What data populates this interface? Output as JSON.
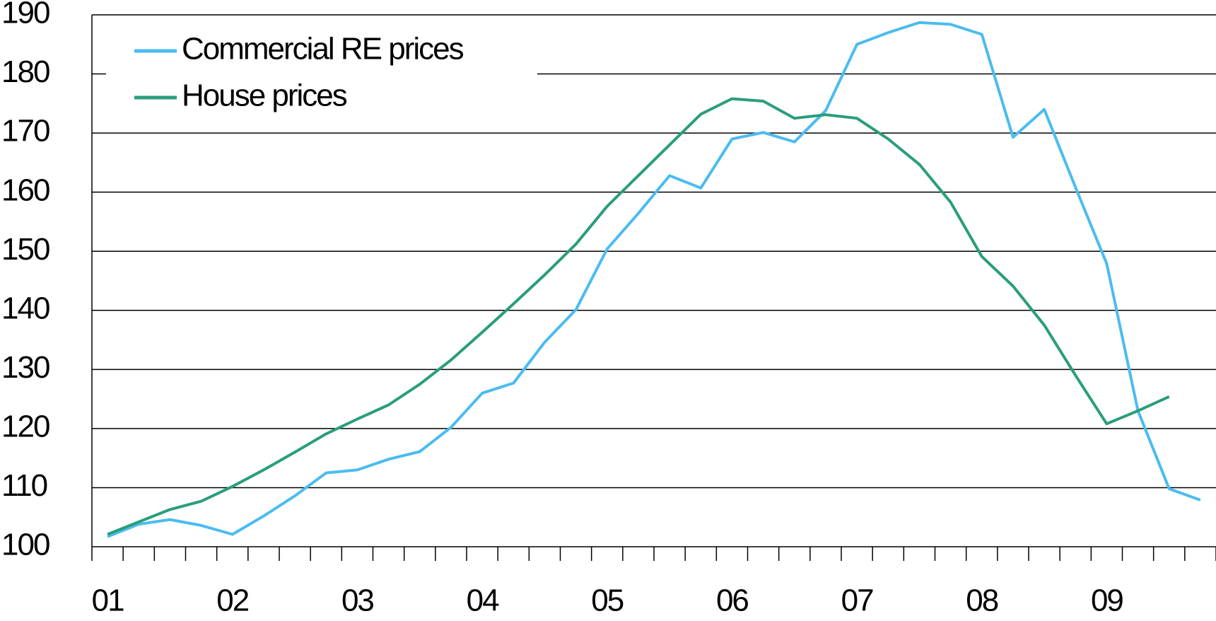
{
  "chart_data": {
    "type": "line",
    "categories": [
      "01",
      null,
      null,
      null,
      "02",
      null,
      null,
      null,
      "03",
      null,
      null,
      null,
      "04",
      null,
      null,
      null,
      "05",
      null,
      null,
      null,
      "06",
      null,
      null,
      null,
      "07",
      null,
      null,
      null,
      "08",
      null,
      null,
      null,
      "09",
      null,
      null,
      null
    ],
    "series": [
      {
        "name": "Commercial RE prices",
        "color": "#4bbcf0",
        "values": [
          101.7,
          103.8,
          104.6,
          103.6,
          102.1,
          105.2,
          108.6,
          112.5,
          113.0,
          114.8,
          116.1,
          120.2,
          126.0,
          127.7,
          134.6,
          140.1,
          150.4,
          156.4,
          162.8,
          160.7,
          169.0,
          170.1,
          168.5,
          173.8,
          185.0,
          187.0,
          188.7,
          188.4,
          186.7,
          169.3,
          174.0,
          160.8,
          147.9,
          123.0,
          109.8,
          107.9
        ]
      },
      {
        "name": "House prices",
        "color": "#2a9d7c",
        "values": [
          102.1,
          104.2,
          106.3,
          107.7,
          110.2,
          113.0,
          116.0,
          119.1,
          121.6,
          124.0,
          127.5,
          131.6,
          136.3,
          141.1,
          146.0,
          151.2,
          157.6,
          162.8,
          168.0,
          173.2,
          175.8,
          175.4,
          172.5,
          173.1,
          172.5,
          169.0,
          164.7,
          158.3,
          149.1,
          144.1,
          137.5,
          129.0,
          120.8,
          123.0,
          125.4,
          null
        ]
      }
    ],
    "ylim": [
      100,
      190
    ],
    "yticks": [
      100,
      110,
      120,
      130,
      140,
      150,
      160,
      170,
      180,
      190
    ],
    "grid": true,
    "legend": "upper left"
  }
}
